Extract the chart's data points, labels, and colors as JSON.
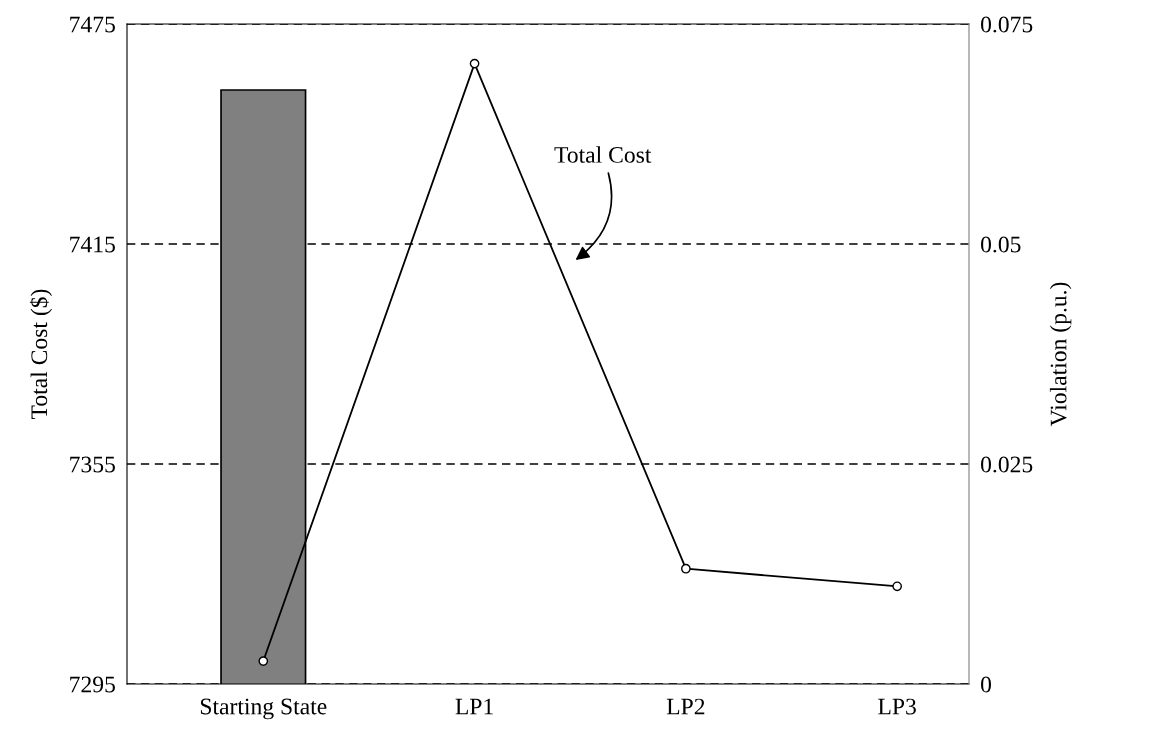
{
  "chart_data": {
    "type": "bar",
    "ylabel": "Total Cost ($)",
    "y2label": "Violation (p.u.)",
    "categories": [
      "Starting State",
      "LP1",
      "LP2",
      "LP3"
    ],
    "series": [
      {
        "color": "#808080",
        "values": [
          7457,
          null,
          null,
          null
        ]
      },
      {
        "type": "line",
        "axis": "y2",
        "color": "#000000",
        "marker": "circle",
        "line_style": "solid",
        "values": [
          0.0026,
          0.0705,
          0.0131,
          0.0111
        ]
      }
    ],
    "ylim": [
      7295,
      7475
    ],
    "yticks": [
      7295,
      7355,
      7415,
      7475
    ],
    "y2lim": [
      0,
      0.075
    ],
    "y2ticks": [
      0,
      0.025,
      0.05,
      0.075
    ],
    "grid": "y",
    "annotations": [
      "Total Cost"
    ]
  }
}
